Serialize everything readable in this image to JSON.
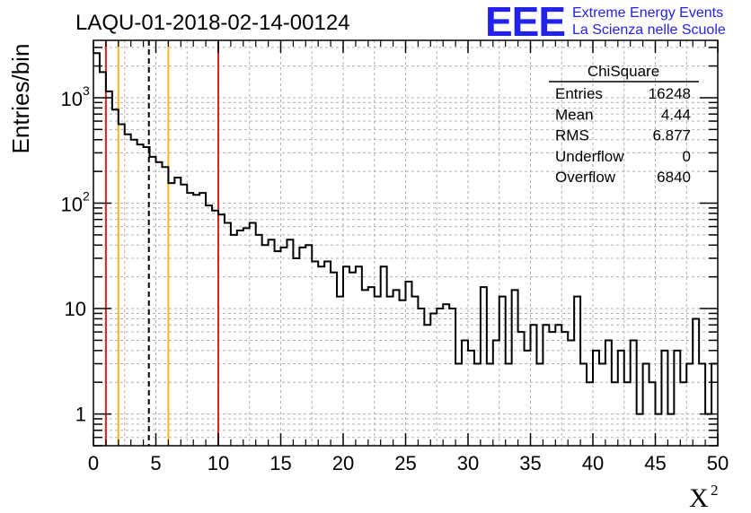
{
  "chart_data": {
    "type": "histogram",
    "title": "LAQU-01-2018-02-14-00124",
    "xlabel": "X",
    "xlabel_superscript": "2",
    "ylabel": "Entries/bin",
    "xlim": [
      0,
      50
    ],
    "ylim": [
      0.5,
      3500
    ],
    "yscale": "log",
    "grid": true,
    "bin_width": 0.5,
    "x_ticks": [
      "0",
      "5",
      "10",
      "15",
      "20",
      "25",
      "30",
      "35",
      "40",
      "45",
      "50"
    ],
    "y_ticks": [
      {
        "value": 1,
        "label": "1"
      },
      {
        "value": 10,
        "label": "10"
      },
      {
        "value": 100,
        "label": "10",
        "sup": "2"
      },
      {
        "value": 1000,
        "label": "10",
        "sup": "3"
      }
    ],
    "values": [
      2650,
      1750,
      1150,
      770,
      560,
      450,
      400,
      360,
      340,
      275,
      245,
      220,
      155,
      175,
      150,
      125,
      120,
      125,
      95,
      85,
      78,
      65,
      50,
      55,
      58,
      65,
      50,
      40,
      45,
      35,
      38,
      45,
      30,
      38,
      40,
      28,
      25,
      28,
      22,
      13,
      25,
      22,
      25,
      15,
      16,
      13,
      25,
      13,
      15,
      12,
      18,
      13,
      10,
      7,
      9,
      10,
      11,
      10,
      3,
      5,
      4,
      3,
      16,
      3,
      5,
      13,
      3,
      15,
      6,
      4,
      7,
      3,
      7,
      6,
      7,
      6,
      5,
      13,
      3,
      2,
      4,
      3,
      5,
      2,
      4,
      2,
      5,
      1,
      3,
      2,
      1,
      4,
      1,
      4,
      2,
      3,
      8,
      3,
      1,
      3
    ],
    "vlines": [
      {
        "x": 1,
        "color": "#dd2222",
        "style": "solid"
      },
      {
        "x": 2,
        "color": "#eebb22",
        "style": "solid"
      },
      {
        "x": 4.44,
        "color": "#000000",
        "style": "dashed"
      },
      {
        "x": 6,
        "color": "#eebb22",
        "style": "solid"
      },
      {
        "x": 10,
        "color": "#dd2222",
        "style": "solid"
      }
    ],
    "stats_box": {
      "title": "ChiSquare",
      "rows": [
        {
          "label": "Entries",
          "value": "16248"
        },
        {
          "label": "Mean",
          "value": "4.44"
        },
        {
          "label": "RMS",
          "value": "6.877"
        },
        {
          "label": "Underflow",
          "value": "0"
        },
        {
          "label": "Overflow",
          "value": "6840"
        }
      ]
    }
  },
  "logo": {
    "mark": "EEE",
    "line1": "Extreme Energy Events",
    "line2": "La Scienza nelle Scuole",
    "color": "#2222ee"
  }
}
